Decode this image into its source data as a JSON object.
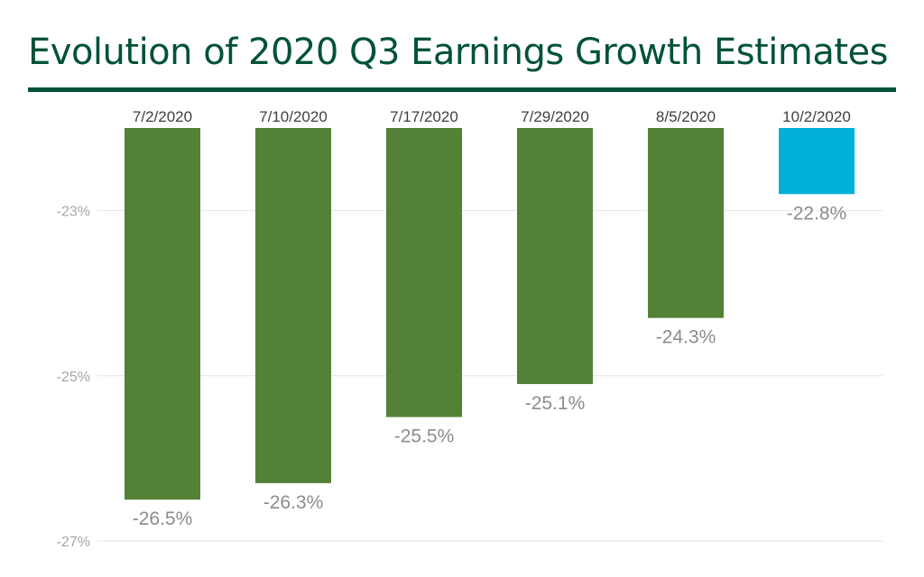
{
  "colors": {
    "title": "#005238",
    "rule": "#005238",
    "bar": "#538135",
    "highlight_bar": "#00b0d8",
    "grid": "#e4e4e4"
  },
  "chart_data": {
    "type": "bar",
    "title": "Evolution of 2020 Q3 Earnings Growth Estimates",
    "xlabel": "",
    "ylabel": "",
    "categories": [
      "7/2/2020",
      "7/10/2020",
      "7/17/2020",
      "7/29/2020",
      "8/5/2020",
      "10/2/2020"
    ],
    "values": [
      -26.5,
      -26.3,
      -25.5,
      -25.1,
      -24.3,
      -22.8
    ],
    "data_labels": [
      "-26.5%",
      "-26.3%",
      "-25.5%",
      "-25.1%",
      "-24.3%",
      "-22.8%"
    ],
    "highlight_index": 5,
    "yticks": [
      -23,
      -25,
      -27
    ],
    "ytick_labels": [
      "-23%",
      "-25%",
      "-27%"
    ],
    "ylim": [
      -27,
      -22
    ],
    "baseline": -22,
    "category_axis_position": "top",
    "grid": true,
    "legend": "none"
  }
}
